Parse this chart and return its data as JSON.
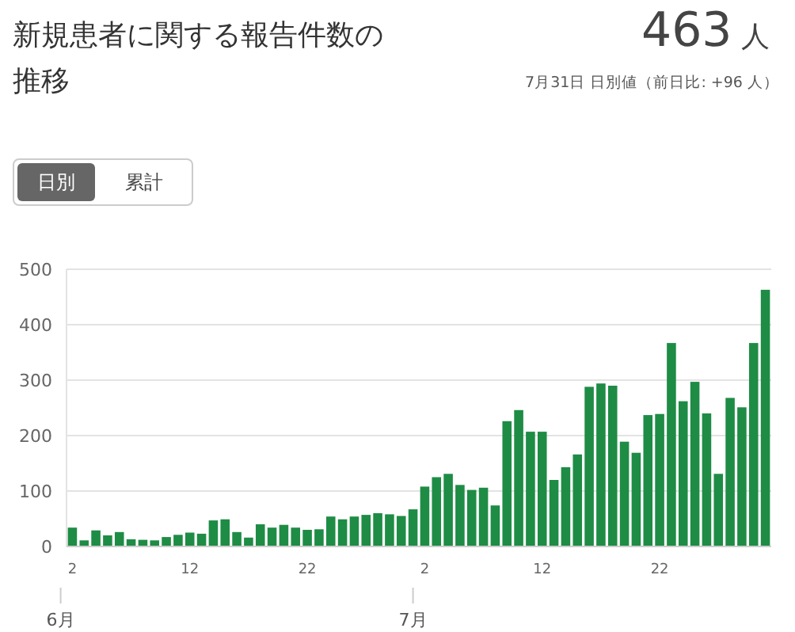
{
  "chart_data": {
    "type": "bar",
    "title": "新規患者に関する報告件数の推移",
    "annotations": [
      "463 人",
      "7月31日 日別値（前日比: +96 人）",
      "日別",
      "累計",
      "6月",
      "7月"
    ],
    "x": [
      "--06-02",
      "--06-03",
      "--06-04",
      "--06-05",
      "--06-06",
      "--06-07",
      "--06-08",
      "--06-09",
      "--06-10",
      "--06-11",
      "--06-12",
      "--06-13",
      "--06-14",
      "--06-15",
      "--06-16",
      "--06-17",
      "--06-18",
      "--06-19",
      "--06-20",
      "--06-21",
      "--06-22",
      "--06-23",
      "--06-24",
      "--06-25",
      "--06-26",
      "--06-27",
      "--06-28",
      "--06-29",
      "--06-30",
      "--07-01",
      "--07-02",
      "--07-03",
      "--07-04",
      "--07-05",
      "--07-06",
      "--07-07",
      "--07-08",
      "--07-09",
      "--07-10",
      "--07-11",
      "--07-12",
      "--07-13",
      "--07-14",
      "--07-15",
      "--07-16",
      "--07-17",
      "--07-18",
      "--07-19",
      "--07-20",
      "--07-21",
      "--07-22",
      "--07-23",
      "--07-24",
      "--07-25",
      "--07-26",
      "--07-27",
      "--07-28",
      "--07-29",
      "--07-30",
      "--07-31"
    ],
    "values": [
      34,
      11,
      29,
      20,
      26,
      13,
      12,
      11,
      17,
      21,
      25,
      23,
      47,
      49,
      26,
      16,
      40,
      34,
      39,
      34,
      30,
      31,
      54,
      49,
      54,
      57,
      60,
      58,
      55,
      67,
      108,
      125,
      131,
      111,
      102,
      106,
      74,
      226,
      246,
      207,
      207,
      120,
      143,
      166,
      288,
      294,
      290,
      189,
      169,
      237,
      239,
      367,
      262,
      297,
      240,
      131,
      268,
      251,
      367,
      463
    ],
    "color": "#1e8c45",
    "xlim": [
      "--06-01T12:00",
      "--07-31T12:00"
    ],
    "xticks": [
      {
        "value": "--06-02",
        "label": "2"
      },
      {
        "value": "--06-12",
        "label": "12"
      },
      {
        "value": "--06-22",
        "label": "22"
      },
      {
        "value": "--07-02",
        "label": "2"
      },
      {
        "value": "--07-12",
        "label": "12"
      },
      {
        "value": "--07-22",
        "label": "22"
      }
    ],
    "ylim": [
      0,
      500
    ],
    "yticks": [
      0,
      100,
      200,
      300,
      400,
      500
    ],
    "grid": "y"
  }
}
